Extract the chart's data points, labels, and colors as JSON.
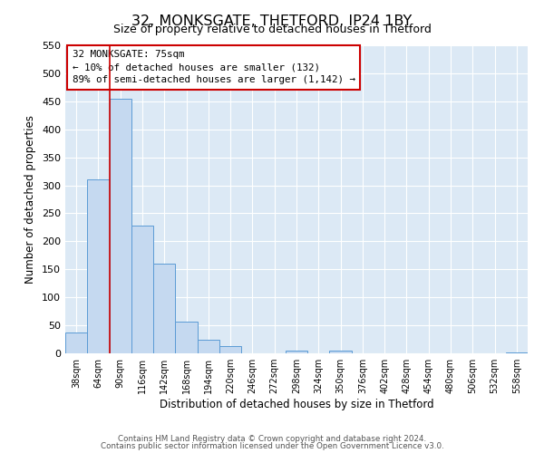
{
  "title": "32, MONKSGATE, THETFORD, IP24 1BY",
  "subtitle": "Size of property relative to detached houses in Thetford",
  "xlabel": "Distribution of detached houses by size in Thetford",
  "ylabel": "Number of detached properties",
  "bar_labels": [
    "38sqm",
    "64sqm",
    "90sqm",
    "116sqm",
    "142sqm",
    "168sqm",
    "194sqm",
    "220sqm",
    "246sqm",
    "272sqm",
    "298sqm",
    "324sqm",
    "350sqm",
    "376sqm",
    "402sqm",
    "428sqm",
    "454sqm",
    "480sqm",
    "506sqm",
    "532sqm",
    "558sqm"
  ],
  "bar_values": [
    37,
    310,
    455,
    228,
    160,
    57,
    25,
    13,
    0,
    0,
    5,
    0,
    5,
    0,
    0,
    0,
    0,
    0,
    0,
    0,
    2
  ],
  "bar_color": "#c5d9f0",
  "bar_edge_color": "#5b9bd5",
  "vline_x": 1.5,
  "vline_color": "#cc0000",
  "annotation_title": "32 MONKSGATE: 75sqm",
  "annotation_line1": "← 10% of detached houses are smaller (132)",
  "annotation_line2": "89% of semi-detached houses are larger (1,142) →",
  "annotation_box_edge_color": "#cc0000",
  "ylim": [
    0,
    550
  ],
  "yticks": [
    0,
    50,
    100,
    150,
    200,
    250,
    300,
    350,
    400,
    450,
    500,
    550
  ],
  "footer1": "Contains HM Land Registry data © Crown copyright and database right 2024.",
  "footer2": "Contains public sector information licensed under the Open Government Licence v3.0.",
  "plot_bg_color": "#dce9f5"
}
